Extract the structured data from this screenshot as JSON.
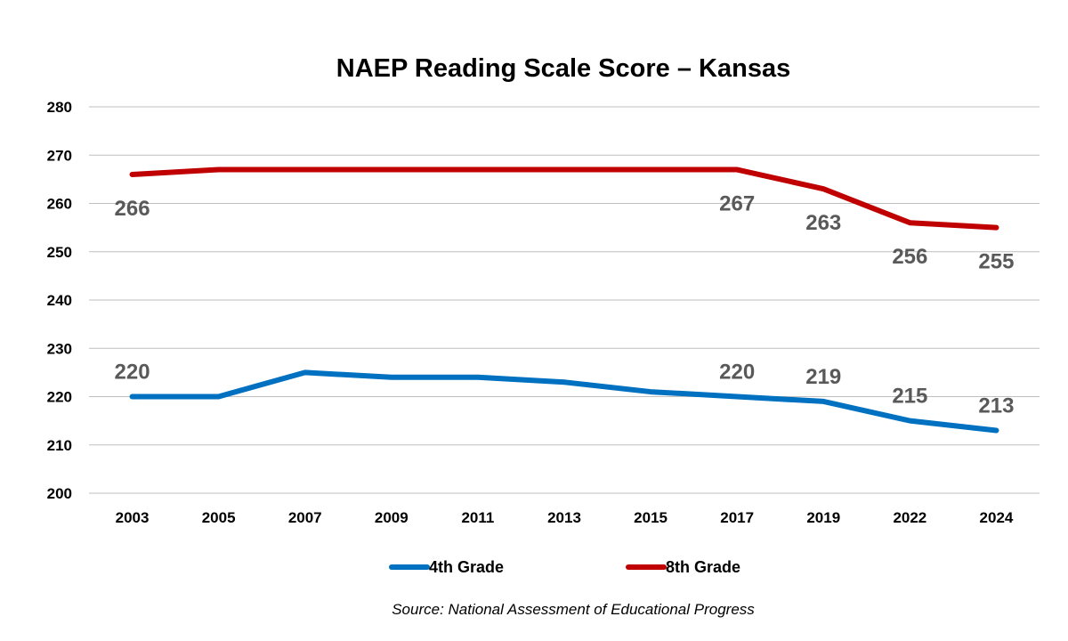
{
  "chart_data": {
    "type": "line",
    "title": "NAEP Reading Scale Score – Kansas",
    "xlabel": "",
    "ylabel": "",
    "categories": [
      "2003",
      "2005",
      "2007",
      "2009",
      "2011",
      "2013",
      "2015",
      "2017",
      "2019",
      "2022",
      "2024"
    ],
    "ylim": [
      200,
      280
    ],
    "yticks": [
      200,
      210,
      220,
      230,
      240,
      250,
      260,
      270,
      280
    ],
    "grid": true,
    "legend_position": "bottom",
    "series": [
      {
        "name": "4th Grade",
        "color": "#0070c0",
        "values": [
          220,
          220,
          225,
          224,
          224,
          223,
          221,
          220,
          219,
          215,
          213
        ],
        "labels": [
          {
            "index": 0,
            "text": "220"
          },
          {
            "index": 7,
            "text": "220"
          },
          {
            "index": 8,
            "text": "219"
          },
          {
            "index": 9,
            "text": "215"
          },
          {
            "index": 10,
            "text": "213"
          }
        ]
      },
      {
        "name": "8th Grade",
        "color": "#c00000",
        "values": [
          266,
          267,
          267,
          267,
          267,
          267,
          267,
          267,
          263,
          256,
          255
        ],
        "labels": [
          {
            "index": 0,
            "text": "266"
          },
          {
            "index": 7,
            "text": "267"
          },
          {
            "index": 8,
            "text": "263"
          },
          {
            "index": 9,
            "text": "256"
          },
          {
            "index": 10,
            "text": "255"
          }
        ]
      }
    ],
    "source": "Source: National Assessment of Educational Progress"
  }
}
